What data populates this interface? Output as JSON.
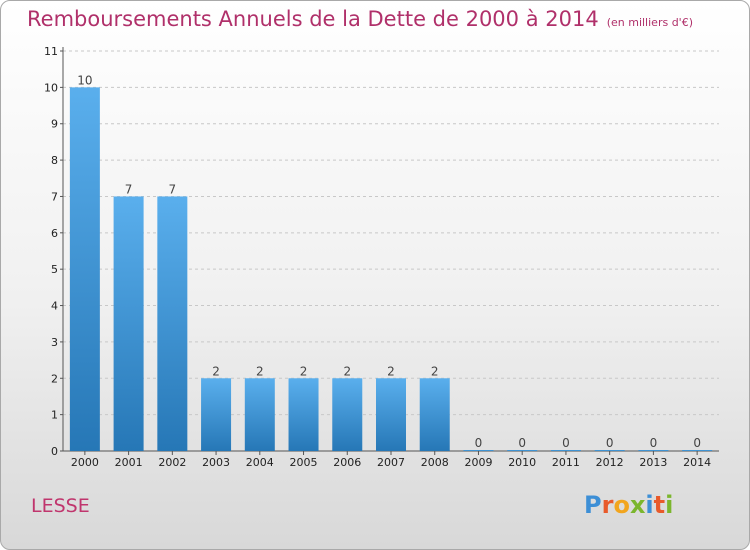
{
  "header": {
    "title": "Remboursements Annuels de la Dette de 2000 à 2014",
    "subtitle": "(en milliers d'€)"
  },
  "footer": {
    "commune": "LESSE",
    "logo_text": "Proxiti"
  },
  "colors": {
    "title": "#b0306a",
    "bar_light": "#5aafed",
    "bar_dark": "#2677b6",
    "logo_p": "#3d8fd6",
    "logo_r": "#e85a2b",
    "logo_o": "#f2a51e",
    "logo_x": "#7bb62d"
  },
  "chart_data": {
    "type": "bar",
    "title": "Remboursements Annuels de la Dette de 2000 à 2014",
    "subtitle": "(en milliers d'€)",
    "categories": [
      "2000",
      "2001",
      "2002",
      "2003",
      "2004",
      "2005",
      "2006",
      "2007",
      "2008",
      "2009",
      "2010",
      "2011",
      "2012",
      "2013",
      "2014"
    ],
    "values": [
      10,
      7,
      7,
      2,
      2,
      2,
      2,
      2,
      2,
      0,
      0,
      0,
      0,
      0,
      0
    ],
    "value_labels": [
      "10",
      "7",
      "7",
      "2",
      "2",
      "2",
      "2",
      "2",
      "2",
      "0",
      "0",
      "0",
      "0",
      "0",
      "0"
    ],
    "yticks": [
      "0",
      "1",
      "2",
      "3",
      "4",
      "5",
      "6",
      "7",
      "8",
      "9",
      "10",
      "11"
    ],
    "ylim": [
      0,
      11
    ],
    "xlabel": "",
    "ylabel": "",
    "grid": true
  }
}
